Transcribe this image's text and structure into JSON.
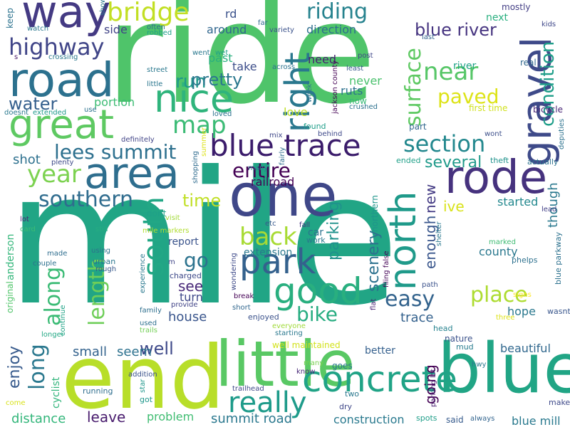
{
  "words": [
    {
      "text": "mile",
      "color": "#21a585",
      "rot": 0
    },
    {
      "text": "ride",
      "color": "#4fc46a",
      "rot": 0
    },
    {
      "text": "end",
      "color": "#b8de29",
      "rot": 0
    },
    {
      "text": "one",
      "color": "#3f4788",
      "rot": 0
    },
    {
      "text": "little",
      "color": "#59c864",
      "rot": 0
    },
    {
      "text": "blue",
      "color": "#21a585",
      "rot": 0
    },
    {
      "text": "way",
      "color": "#443a83",
      "rot": 0
    },
    {
      "text": "road",
      "color": "#2c718e",
      "rot": 0
    },
    {
      "text": "area",
      "color": "#2e6e8e",
      "rot": 0
    },
    {
      "text": "great",
      "color": "#5ec962",
      "rot": 0
    },
    {
      "text": "nice",
      "color": "#2fb47c",
      "rot": 0
    },
    {
      "text": "rode",
      "color": "#46327e",
      "rot": 0
    },
    {
      "text": "park",
      "color": "#34618d",
      "rot": 0
    },
    {
      "text": "good",
      "color": "#29af7f",
      "rot": 0
    },
    {
      "text": "concrete",
      "color": "#20a386",
      "rot": 0
    },
    {
      "text": "blue trace",
      "color": "#3b1c6b",
      "rot": 0
    },
    {
      "text": "right",
      "color": "#2a788e",
      "rot": -90
    },
    {
      "text": "gravel",
      "color": "#3e4a89",
      "rot": -90
    },
    {
      "text": "north",
      "color": "#1f9a8a",
      "rot": -90
    },
    {
      "text": "really",
      "color": "#1e9b8a",
      "rot": 0
    },
    {
      "text": "bridge",
      "color": "#c2df23",
      "rot": 0
    },
    {
      "text": "highway",
      "color": "#404588",
      "rot": 0
    },
    {
      "text": "map",
      "color": "#3bbb75",
      "rot": 0
    },
    {
      "text": "section",
      "color": "#23888e",
      "rot": 0
    },
    {
      "text": "year",
      "color": "#7cd250",
      "rot": 0
    },
    {
      "text": "south",
      "color": "#22a785",
      "rot": -90
    },
    {
      "text": "southern",
      "color": "#2f6c8e",
      "rot": 0
    },
    {
      "text": "entire",
      "color": "#440154",
      "rot": 0
    },
    {
      "text": "near",
      "color": "#56c667",
      "rot": 0
    },
    {
      "text": "riding",
      "color": "#26828e",
      "rot": 0
    },
    {
      "text": "blue river",
      "color": "#463480",
      "rot": 0
    },
    {
      "text": "surface",
      "color": "#5ec962",
      "rot": -90
    },
    {
      "text": "condition",
      "color": "#1f9e89",
      "rot": -90
    },
    {
      "text": "lees summit",
      "color": "#2d708e",
      "rot": 0
    },
    {
      "text": "back",
      "color": "#a8db34",
      "rot": 0
    },
    {
      "text": "along",
      "color": "#3bbb75",
      "rot": -90
    },
    {
      "text": "length",
      "color": "#6ece58",
      "rot": -90
    },
    {
      "text": "long",
      "color": "#2a788e",
      "rot": -90
    },
    {
      "text": "easy",
      "color": "#33638d",
      "rot": 0
    },
    {
      "text": "place",
      "color": "#addc30",
      "rot": 0
    },
    {
      "text": "bike",
      "color": "#27ad81",
      "rot": 0
    },
    {
      "text": "paved",
      "color": "#dde318",
      "rot": 0
    },
    {
      "text": "run",
      "color": "#1f998a",
      "rot": 0
    },
    {
      "text": "pretty",
      "color": "#2a788e",
      "rot": 0
    },
    {
      "text": "water",
      "color": "#355f8d",
      "rot": 0
    },
    {
      "text": "time",
      "color": "#c0df25",
      "rot": 0
    },
    {
      "text": "go",
      "color": "#2c738e",
      "rot": 0
    },
    {
      "text": "well",
      "color": "#3e4989",
      "rot": 0
    },
    {
      "text": "parking",
      "color": "#20928c",
      "rot": -90
    },
    {
      "text": "scenery",
      "color": "#2c718e",
      "rot": -90
    },
    {
      "text": "enough",
      "color": "#39568c",
      "rot": -90
    },
    {
      "text": "new",
      "color": "#443b84",
      "rot": -90
    },
    {
      "text": "going",
      "color": "#440154",
      "rot": -90
    },
    {
      "text": "several",
      "color": "#1f9a8a",
      "rot": 0
    },
    {
      "text": "though",
      "color": "#2a788e",
      "rot": -90
    },
    {
      "text": "ive",
      "color": "#d8e219",
      "rot": 0
    },
    {
      "text": "started",
      "color": "#23888e",
      "rot": 0
    },
    {
      "text": "enjoy",
      "color": "#375a8c",
      "rot": -90
    },
    {
      "text": "house",
      "color": "#39558c",
      "rot": 0
    },
    {
      "text": "small",
      "color": "#33628d",
      "rot": 0
    },
    {
      "text": "seem",
      "color": "#2c718e",
      "rot": 0
    },
    {
      "text": "leave",
      "color": "#481b6d",
      "rot": 0
    },
    {
      "text": "problem",
      "color": "#40bd72",
      "rot": 0
    },
    {
      "text": "summit road",
      "color": "#2a788e",
      "rot": 0
    },
    {
      "text": "distance",
      "color": "#32b67a",
      "rot": 0
    },
    {
      "text": "construction",
      "color": "#29798e",
      "rot": 0
    },
    {
      "text": "blue mill",
      "color": "#29798e",
      "rot": 0
    },
    {
      "text": "beautiful",
      "color": "#31688e",
      "rot": 0
    },
    {
      "text": "hope",
      "color": "#2a788e",
      "rot": 0
    },
    {
      "text": "county",
      "color": "#2a788e",
      "rot": 0
    },
    {
      "text": "see",
      "color": "#482878",
      "rot": 0
    },
    {
      "text": "turn",
      "color": "#3f4889",
      "rot": 0
    },
    {
      "text": "trace",
      "color": "#34618d",
      "rot": 0
    },
    {
      "text": "shot",
      "color": "#2d708e",
      "rot": 0
    },
    {
      "text": "side",
      "color": "#414487",
      "rot": 0
    },
    {
      "text": "around",
      "color": "#31678e",
      "rot": 0
    },
    {
      "text": "portion",
      "color": "#3dbc74",
      "rot": 0
    },
    {
      "text": "take",
      "color": "#3d4e8a",
      "rot": 0
    },
    {
      "text": "past",
      "color": "#29af7f",
      "rot": 0
    },
    {
      "text": "need",
      "color": "#481f70",
      "rot": 0
    },
    {
      "text": "direction",
      "color": "#2e6e8e",
      "rot": 0
    },
    {
      "text": "never",
      "color": "#4ac16d",
      "rot": 0
    },
    {
      "text": "ruts",
      "color": "#2c728e",
      "rot": 0
    },
    {
      "text": "love",
      "color": "#bddf26",
      "rot": 0
    },
    {
      "text": "report",
      "color": "#3a538b",
      "rot": 0
    },
    {
      "text": "railroad",
      "color": "#440154",
      "rot": 0
    },
    {
      "text": "extension",
      "color": "#2a788e",
      "rot": 0
    },
    {
      "text": "rd",
      "color": "#3b528b",
      "rot": 0
    },
    {
      "text": "next",
      "color": "#29af7f",
      "rot": 0
    },
    {
      "text": "mostly",
      "color": "#433e85",
      "rot": 0
    },
    {
      "text": "kids",
      "color": "#3f4889",
      "rot": 0
    },
    {
      "text": "real",
      "color": "#31688e",
      "rot": 0
    },
    {
      "text": "river",
      "color": "#1fa287",
      "rot": 0
    },
    {
      "text": "bicycle",
      "color": "#482576",
      "rot": 0
    },
    {
      "text": "first time",
      "color": "#d0e11c",
      "rot": 0
    },
    {
      "text": "deputies",
      "color": "#2c728e",
      "rot": -90
    },
    {
      "text": "actually",
      "color": "#2c728e",
      "rot": 0
    },
    {
      "text": "lead",
      "color": "#424086",
      "rot": 0
    },
    {
      "text": "theft",
      "color": "#20938c",
      "rot": 0
    },
    {
      "text": "wont",
      "color": "#3c4f8a",
      "rot": 0
    },
    {
      "text": "marked",
      "color": "#3fbc73",
      "rot": 0
    },
    {
      "text": "phelps",
      "color": "#2d708e",
      "rot": 0
    },
    {
      "text": "blue parkway",
      "color": "#2c718e",
      "rot": -90
    },
    {
      "text": "wasnt",
      "color": "#39568c",
      "rot": 0
    },
    {
      "text": "three",
      "color": "#dde318",
      "rot": 0
    },
    {
      "text": "signs",
      "color": "#fde725",
      "rot": 0
    },
    {
      "text": "nature",
      "color": "#3b528b",
      "rot": 0
    },
    {
      "text": "mud",
      "color": "#287c8e",
      "rot": 0
    },
    {
      "text": "hwy",
      "color": "#2a788e",
      "rot": 0
    },
    {
      "text": "make",
      "color": "#3e4989",
      "rot": 0
    },
    {
      "text": "always",
      "color": "#32648e",
      "rot": 0
    },
    {
      "text": "said",
      "color": "#375b8d",
      "rot": 0
    },
    {
      "text": "spots",
      "color": "#1f9e89",
      "rot": 0
    },
    {
      "text": "parking lot",
      "color": "#481f70",
      "rot": -90
    },
    {
      "text": "head",
      "color": "#26828e",
      "rot": 0
    },
    {
      "text": "path",
      "color": "#3b528b",
      "rot": 0
    },
    {
      "text": "better",
      "color": "#35608d",
      "rot": 0
    },
    {
      "text": "goes",
      "color": "#2a788e",
      "rot": 0
    },
    {
      "text": "know",
      "color": "#482878",
      "rot": 0
    },
    {
      "text": "many",
      "color": "#7ad151",
      "rot": 0
    },
    {
      "text": "two",
      "color": "#2a788e",
      "rot": 0
    },
    {
      "text": "dry",
      "color": "#3f4788",
      "rot": 0
    },
    {
      "text": "trailhead",
      "color": "#3f4788",
      "rot": 0
    },
    {
      "text": "well maintained",
      "color": "#d2e21b",
      "rot": 0
    },
    {
      "text": "starting",
      "color": "#2a788e",
      "rot": 0
    },
    {
      "text": "everyone",
      "color": "#a0da39",
      "rot": 0
    },
    {
      "text": "enjoyed",
      "color": "#3b528b",
      "rot": 0
    },
    {
      "text": "short",
      "color": "#31678e",
      "rot": 0
    },
    {
      "text": "break",
      "color": "#440154",
      "rot": 0
    },
    {
      "text": "flat",
      "color": "#482173",
      "rot": -90
    },
    {
      "text": "filing false",
      "color": "#450457",
      "rot": -90
    },
    {
      "text": "northern",
      "color": "#1f958b",
      "rot": -90
    },
    {
      "text": "wondering",
      "color": "#3e4a89",
      "rot": -90
    },
    {
      "text": "work",
      "color": "#2a788e",
      "rot": 0
    },
    {
      "text": "car",
      "color": "#2c728e",
      "rot": 0
    },
    {
      "text": "fall",
      "color": "#463480",
      "rot": 0
    },
    {
      "text": "etc",
      "color": "#38598c",
      "rot": 0
    },
    {
      "text": "shelter",
      "color": "#2a788e",
      "rot": -90
    },
    {
      "text": "charged",
      "color": "#3e4989",
      "rot": 0
    },
    {
      "text": "m",
      "color": "#404688",
      "rot": 0
    },
    {
      "text": "provide",
      "color": "#414487",
      "rot": 0
    },
    {
      "text": "family",
      "color": "#2e6f8e",
      "rot": 0
    },
    {
      "text": "used",
      "color": "#2d708e",
      "rot": 0
    },
    {
      "text": "trails",
      "color": "#73d056",
      "rot": 0
    },
    {
      "text": "star",
      "color": "#1f968b",
      "rot": -90
    },
    {
      "text": "got",
      "color": "#1f978b",
      "rot": 0
    },
    {
      "text": "running",
      "color": "#2e6e8e",
      "rot": 0
    },
    {
      "text": "addition",
      "color": "#3b528b",
      "rot": 0
    },
    {
      "text": "urban",
      "color": "#2a768e",
      "rot": 0
    },
    {
      "text": "rough",
      "color": "#38598c",
      "rot": 0
    },
    {
      "text": "using",
      "color": "#2d718e",
      "rot": 0
    },
    {
      "text": "made",
      "color": "#2e6d8e",
      "rot": 0
    },
    {
      "text": "experience",
      "color": "#2a788e",
      "rot": -90
    },
    {
      "text": "continue",
      "color": "#20a386",
      "rot": -90
    },
    {
      "text": "longer",
      "color": "#22a884",
      "rot": 0
    },
    {
      "text": "cyclist",
      "color": "#31b57b",
      "rot": -90
    },
    {
      "text": "original",
      "color": "#50c46a",
      "rot": -90
    },
    {
      "text": "anderson",
      "color": "#33b67a",
      "rot": -90
    },
    {
      "text": "come",
      "color": "#d8e219",
      "rot": 0
    },
    {
      "text": "couple",
      "color": "#2c718e",
      "rot": 0
    },
    {
      "text": "lot",
      "color": "#482576",
      "rot": 0
    },
    {
      "text": "card",
      "color": "#3bbb75",
      "rot": 0
    },
    {
      "text": "still",
      "color": "#27ad81",
      "rot": 0
    },
    {
      "text": "visit",
      "color": "#a2da37",
      "rot": 0
    },
    {
      "text": "mile markers",
      "color": "#b0dd2f",
      "rot": 0
    },
    {
      "text": "dont",
      "color": "#1fa188",
      "rot": 0
    },
    {
      "text": "shopping",
      "color": "#2f6b8e",
      "rot": -90
    },
    {
      "text": "summer",
      "color": "#dde318",
      "rot": -90
    },
    {
      "text": "plenty",
      "color": "#3e4a89",
      "rot": 0
    },
    {
      "text": "definitely",
      "color": "#414487",
      "rot": 0
    },
    {
      "text": "mix",
      "color": "#3f4889",
      "rot": 0
    },
    {
      "text": "many",
      "color": "#2a788e",
      "rot": 0
    },
    {
      "text": "fairly",
      "color": "#2e6e8e",
      "rot": -90
    },
    {
      "text": "found",
      "color": "#1f9e89",
      "rot": 0
    },
    {
      "text": "behind",
      "color": "#3e4989",
      "rot": 0
    },
    {
      "text": "ended",
      "color": "#1fa088",
      "rot": 0
    },
    {
      "text": "part",
      "color": "#31668e",
      "rot": 0
    },
    {
      "text": "crushed",
      "color": "#2c718e",
      "rot": 0
    },
    {
      "text": "now",
      "color": "#38b977",
      "rot": 0
    },
    {
      "text": "least",
      "color": "#38598c",
      "rot": 0
    },
    {
      "text": "post",
      "color": "#3f4788",
      "rot": 0
    },
    {
      "text": "jackson county",
      "color": "#440154",
      "rot": -90
    },
    {
      "text": "week",
      "color": "#2d708e",
      "rot": -90
    },
    {
      "text": "across",
      "color": "#2c728e",
      "rot": 0
    },
    {
      "text": "street",
      "color": "#2a788e",
      "rot": 0
    },
    {
      "text": "little",
      "color": "#2a768e",
      "rot": 0
    },
    {
      "text": "loved",
      "color": "#2c718e",
      "rot": 0
    },
    {
      "text": "wet",
      "color": "#1fa188",
      "rot": 0
    },
    {
      "text": "went",
      "color": "#2a788e",
      "rot": 0
    },
    {
      "text": "variety",
      "color": "#3b528b",
      "rot": 0
    },
    {
      "text": "far",
      "color": "#31688e",
      "rot": 0
    },
    {
      "text": "often",
      "color": "#2d718e",
      "rot": 0
    },
    {
      "text": "robbed",
      "color": "#1f9e89",
      "rot": 0
    },
    {
      "text": "show",
      "color": "#2a788e",
      "rot": -90
    },
    {
      "text": "keep",
      "color": "#2c728e",
      "rot": -90
    },
    {
      "text": "watch",
      "color": "#2a788e",
      "rot": 0
    },
    {
      "text": "s",
      "color": "#481a6c",
      "rot": 0
    },
    {
      "text": "crossing",
      "color": "#2a788e",
      "rot": 0
    },
    {
      "text": "doesnt",
      "color": "#2a788e",
      "rot": 0
    },
    {
      "text": "extended",
      "color": "#1f9a8a",
      "rot": 0
    },
    {
      "text": "use",
      "color": "#2c728e",
      "rot": 0
    },
    {
      "text": "last",
      "color": "#33638d",
      "rot": 0
    }
  ]
}
